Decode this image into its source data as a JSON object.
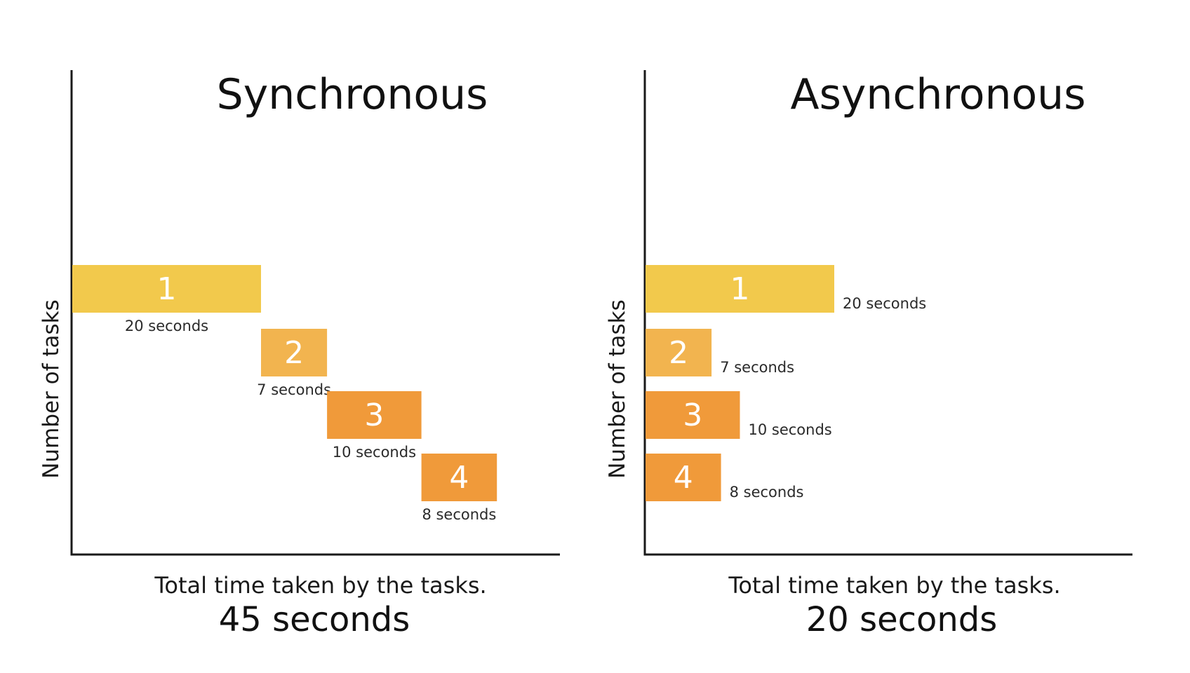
{
  "chart_data": [
    {
      "type": "bar",
      "title": "Synchronous",
      "ylabel": "Number of tasks",
      "xlabel": "Total time taken by the tasks.",
      "total_label": "45 seconds",
      "total_seconds": 45,
      "mode": "sequential",
      "tasks": [
        {
          "label": "1",
          "seconds": 20,
          "duration_label": "20 seconds",
          "color": "#F2C94C"
        },
        {
          "label": "2",
          "seconds": 7,
          "duration_label": "7 seconds",
          "color": "#F2B44F"
        },
        {
          "label": "3",
          "seconds": 10,
          "duration_label": "10 seconds",
          "color": "#F09A3A"
        },
        {
          "label": "4",
          "seconds": 8,
          "duration_label": "8 seconds",
          "color": "#F09A3A"
        }
      ]
    },
    {
      "type": "bar",
      "title": "Asynchronous",
      "ylabel": "Number of tasks",
      "xlabel": "Total time taken by the tasks.",
      "total_label": "20 seconds",
      "total_seconds": 20,
      "mode": "parallel",
      "tasks": [
        {
          "label": "1",
          "seconds": 20,
          "duration_label": "20 seconds",
          "color": "#F2C94C"
        },
        {
          "label": "2",
          "seconds": 7,
          "duration_label": "7 seconds",
          "color": "#F2B44F"
        },
        {
          "label": "3",
          "seconds": 10,
          "duration_label": "10 seconds",
          "color": "#F09A3A"
        },
        {
          "label": "4",
          "seconds": 8,
          "duration_label": "8 seconds",
          "color": "#F09A3A"
        }
      ]
    }
  ]
}
